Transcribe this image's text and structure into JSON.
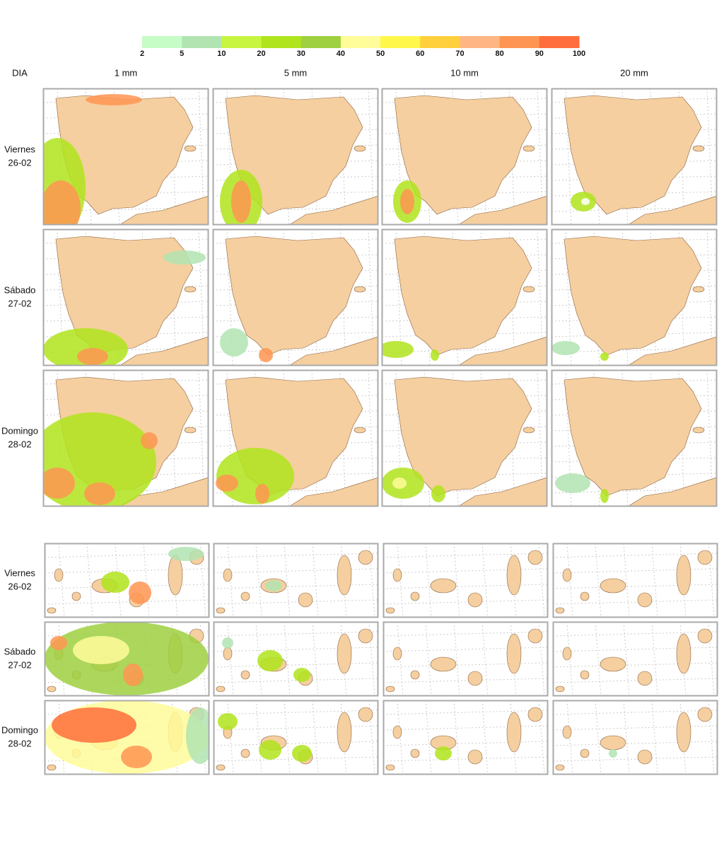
{
  "legend": {
    "ticks": [
      2,
      5,
      10,
      20,
      30,
      40,
      50,
      60,
      70,
      80,
      90,
      100
    ],
    "colors": [
      "#c6fcc6",
      "#b2e4b2",
      "#c8f540",
      "#b0e41c",
      "#9ed040",
      "#fffc9a",
      "#fff84a",
      "#ffd03c",
      "#ffb684",
      "#ff9552",
      "#ff6e3c"
    ]
  },
  "header": {
    "corner": "DIA",
    "columns": [
      "1 mm",
      "5 mm",
      "10 mm",
      "20 mm"
    ]
  },
  "peninsula_rows": [
    {
      "day": "Viernes",
      "date": "26-02"
    },
    {
      "day": "Sábado",
      "date": "27-02"
    },
    {
      "day": "Domingo",
      "date": "28-02"
    }
  ],
  "canary_rows": [
    {
      "day": "Viernes",
      "date": "26-02"
    },
    {
      "day": "Sábado",
      "date": "27-02"
    },
    {
      "day": "Domingo",
      "date": "28-02"
    }
  ]
}
